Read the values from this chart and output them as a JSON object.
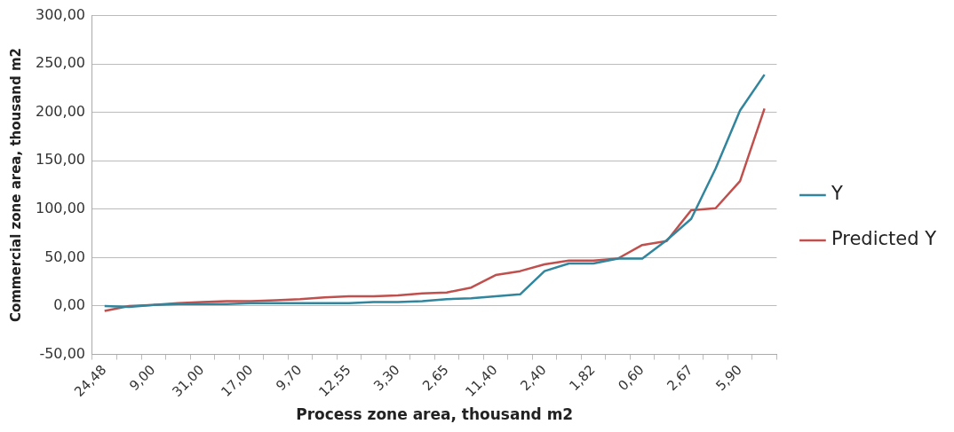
{
  "chart_data": {
    "type": "line",
    "xlabel": "Process zone area, thousand m2",
    "ylabel": "Commercial zone area, thousand m2",
    "categories": [
      "24,48",
      null,
      "9,00",
      null,
      "31,00",
      null,
      "17,00",
      null,
      "9,70",
      null,
      "12,55",
      null,
      "3,30",
      null,
      "2,65",
      null,
      "11,40",
      null,
      "2,40",
      null,
      "1,82",
      null,
      "0,60",
      null,
      "2,67",
      null,
      "5,90",
      null
    ],
    "series": [
      {
        "name": "Y",
        "color": "#31859c",
        "values": [
          0,
          -1,
          1,
          2,
          2,
          2,
          3,
          3,
          3,
          3,
          3,
          4,
          4,
          5,
          7,
          8,
          10,
          12,
          36,
          44,
          44,
          49,
          49,
          68,
          90,
          142,
          202,
          239
        ]
      },
      {
        "name": "Predicted Y",
        "color": "#c0504d",
        "values": [
          -5,
          0,
          1,
          3,
          4,
          5,
          5,
          6,
          7,
          9,
          10,
          10,
          11,
          13,
          14,
          19,
          32,
          36,
          43,
          47,
          47,
          49,
          63,
          67,
          99,
          101,
          129,
          204
        ]
      }
    ],
    "ylim": [
      -50,
      300
    ],
    "yticks": [
      {
        "value": -50,
        "label": "-50,00"
      },
      {
        "value": 0,
        "label": "0,00"
      },
      {
        "value": 50,
        "label": "50,00"
      },
      {
        "value": 100,
        "label": "100,00"
      },
      {
        "value": 150,
        "label": "150,00"
      },
      {
        "value": 200,
        "label": "200,00"
      },
      {
        "value": 250,
        "label": "250,00"
      },
      {
        "value": 300,
        "label": "300,00"
      }
    ],
    "grid": "y",
    "legend": "right",
    "marker": "none",
    "line_style": "solid"
  }
}
